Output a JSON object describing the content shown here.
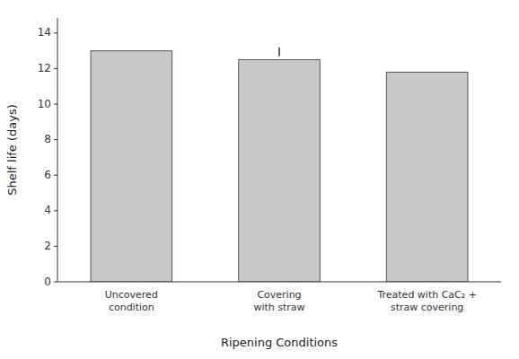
{
  "chart_data": {
    "type": "bar",
    "categories": [
      "Uncovered\ncondition",
      "Covering\nwith straw",
      "Treated with CaC₂ +\nstraw covering"
    ],
    "values": [
      13.0,
      12.5,
      11.8
    ],
    "color": "#c8c8c8",
    "xlabel": "Ripening Conditions",
    "ylabel": "Shelf life (days)",
    "ylim": [
      0,
      14.85
    ],
    "yticks": [
      0,
      2,
      4,
      6,
      8,
      10,
      12,
      14
    ],
    "grid": false,
    "lsd": {
      "at": 1,
      "low": 12.7,
      "high": 13.2
    }
  }
}
